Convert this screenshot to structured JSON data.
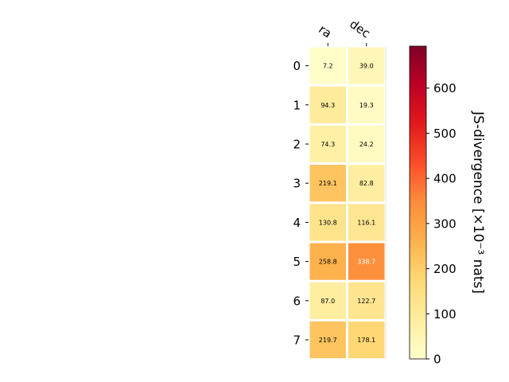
{
  "chart_data": {
    "type": "heatmap",
    "columns": [
      "ra",
      "dec"
    ],
    "rows": [
      "0",
      "1",
      "2",
      "3",
      "4",
      "5",
      "6",
      "7"
    ],
    "values": [
      [
        7.2,
        39.0
      ],
      [
        94.3,
        19.3
      ],
      [
        74.3,
        24.2
      ],
      [
        219.1,
        82.8
      ],
      [
        130.8,
        116.1
      ],
      [
        258.8,
        338.7
      ],
      [
        87.0,
        122.7
      ],
      [
        219.7,
        178.1
      ]
    ],
    "cell_labels": [
      [
        "7.2",
        "39.0"
      ],
      [
        "94.3",
        "19.3"
      ],
      [
        "74.3",
        "24.2"
      ],
      [
        "219.1",
        "82.8"
      ],
      [
        "130.8",
        "116.1"
      ],
      [
        "258.8",
        "338.7"
      ],
      [
        "87.0",
        "122.7"
      ],
      [
        "219.7",
        "178.1"
      ]
    ],
    "colormap": "YlOrRd",
    "colorbar": {
      "label": "JS-divergence [×10⁻³ nats]",
      "range": [
        0,
        693
      ],
      "ticks": [
        0,
        100,
        200,
        300,
        400,
        500,
        600
      ],
      "tick_labels": [
        "0",
        "100",
        "200",
        "300",
        "400",
        "500",
        "600"
      ]
    },
    "grid": false
  }
}
